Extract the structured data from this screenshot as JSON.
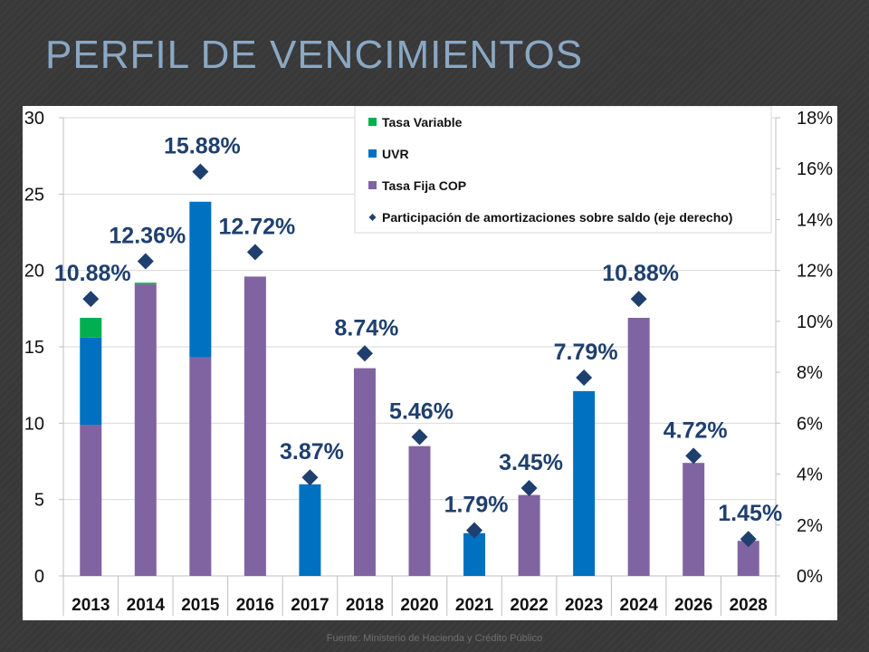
{
  "slide": {
    "title": "PERFIL DE VENCIMIENTOS",
    "source": "Fuente: Ministerio de Hacienda y Crédito Público"
  },
  "chart_data": {
    "type": "bar",
    "stacked": true,
    "categories": [
      "2013",
      "2014",
      "2015",
      "2016",
      "2017",
      "2018",
      "2020",
      "2021",
      "2022",
      "2023",
      "2024",
      "2026",
      "2028"
    ],
    "series": [
      {
        "name": "Tasa Fija COP",
        "color": "#8064a2",
        "values": [
          9.9,
          19.1,
          14.3,
          19.6,
          0,
          13.6,
          8.5,
          0,
          5.3,
          0,
          16.9,
          7.4,
          2.3
        ]
      },
      {
        "name": "UVR",
        "color": "#0070c0",
        "values": [
          5.7,
          0,
          10.2,
          0,
          6.0,
          0,
          0,
          2.8,
          0,
          12.1,
          0,
          0,
          0
        ]
      },
      {
        "name": "Tasa Variable",
        "color": "#00b050",
        "values": [
          1.3,
          0.1,
          0,
          0,
          0,
          0,
          0,
          0,
          0,
          0,
          0,
          0,
          0
        ]
      }
    ],
    "line": {
      "name": "Participación de amortizaciones sobre saldo (eje derecho)",
      "color": "#1f3f6e",
      "values": [
        10.88,
        12.36,
        15.88,
        12.72,
        3.87,
        8.74,
        5.46,
        1.79,
        3.45,
        7.79,
        10.88,
        4.72,
        1.45
      ],
      "labels": [
        "10.88%",
        "12.36%",
        "15.88%",
        "12.72%",
        "3.87%",
        "8.74%",
        "5.46%",
        "1.79%",
        "3.45%",
        "7.79%",
        "10.88%",
        "4.72%",
        "1.45%"
      ]
    },
    "y_left": {
      "min": 0,
      "max": 30,
      "ticks": [
        "0",
        "5",
        "10",
        "15",
        "20",
        "25",
        "30"
      ]
    },
    "y_right": {
      "min": 0,
      "max": 18,
      "ticks": [
        "0%",
        "2%",
        "4%",
        "6%",
        "8%",
        "10%",
        "12%",
        "14%",
        "16%",
        "18%"
      ]
    },
    "legend_position": "top-right",
    "grid": true
  }
}
